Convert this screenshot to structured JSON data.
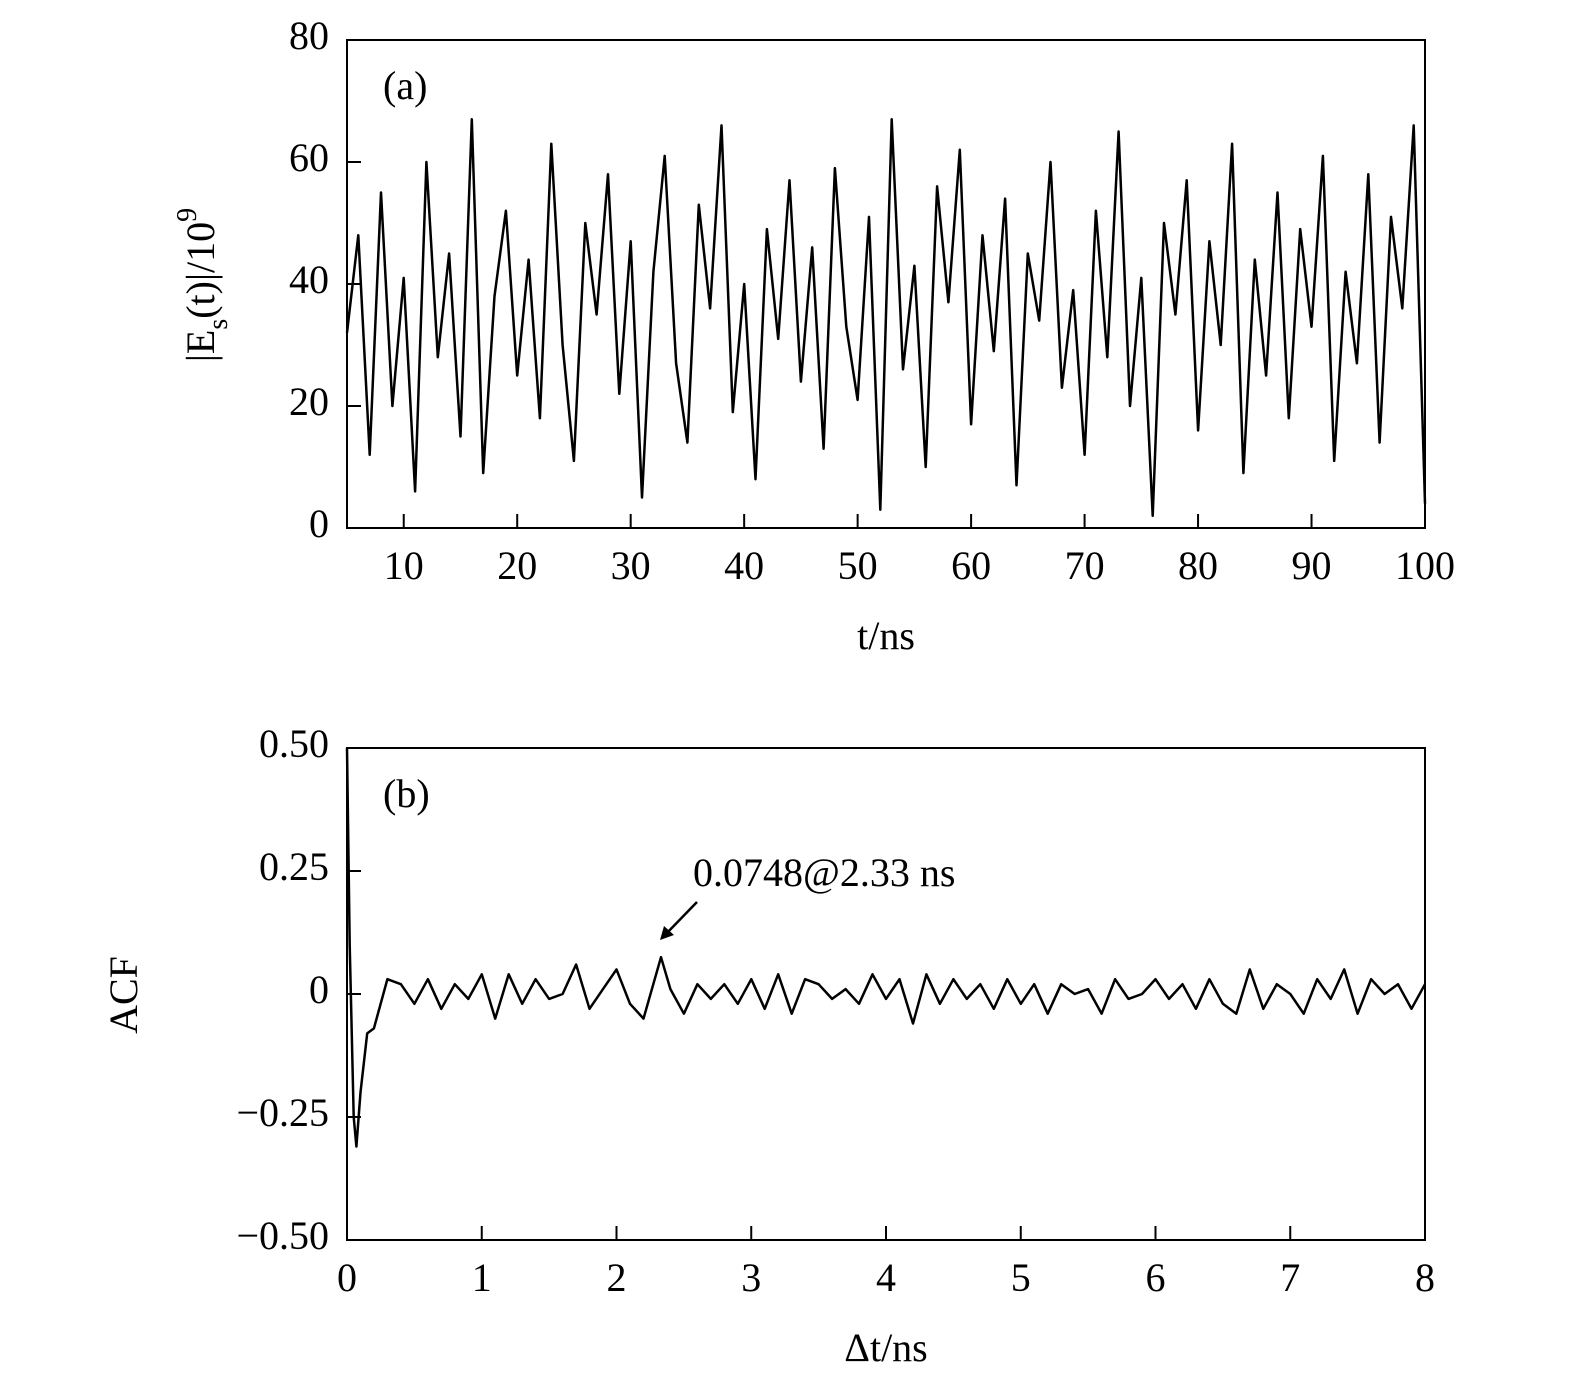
{
  "chart_data": [
    {
      "type": "line",
      "panel_label": "(a)",
      "xlabel": "t/ns",
      "ylabel": [
        "|E",
        "s",
        "(t)|/10",
        "9"
      ],
      "xlim": [
        5,
        100
      ],
      "xticks": [
        10,
        20,
        30,
        40,
        50,
        60,
        70,
        80,
        90,
        100
      ],
      "ylim": [
        0,
        80
      ],
      "yticks": [
        0,
        20,
        40,
        60,
        80
      ],
      "series": [
        {
          "color": "#000000",
          "x": [
            5,
            6,
            7,
            8,
            9,
            10,
            11,
            12,
            13,
            14,
            15,
            16,
            17,
            18,
            19,
            20,
            21,
            22,
            23,
            24,
            25,
            26,
            27,
            28,
            29,
            30,
            31,
            32,
            33,
            34,
            35,
            36,
            37,
            38,
            39,
            40,
            41,
            42,
            43,
            44,
            45,
            46,
            47,
            48,
            49,
            50,
            51,
            52,
            53,
            54,
            55,
            56,
            57,
            58,
            59,
            60,
            61,
            62,
            63,
            64,
            65,
            66,
            67,
            68,
            69,
            70,
            71,
            72,
            73,
            74,
            75,
            76,
            77,
            78,
            79,
            80,
            81,
            82,
            83,
            84,
            85,
            86,
            87,
            88,
            89,
            90,
            91,
            92,
            93,
            94,
            95,
            96,
            97,
            98,
            99,
            100
          ],
          "values": [
            32,
            48,
            12,
            55,
            20,
            41,
            6,
            60,
            28,
            45,
            15,
            67,
            9,
            38,
            52,
            25,
            44,
            18,
            63,
            30,
            11,
            50,
            35,
            58,
            22,
            47,
            5,
            42,
            61,
            27,
            14,
            53,
            36,
            66,
            19,
            40,
            8,
            49,
            31,
            57,
            24,
            46,
            13,
            59,
            33,
            21,
            51,
            3,
            67,
            26,
            43,
            10,
            56,
            37,
            62,
            17,
            48,
            29,
            54,
            7,
            45,
            34,
            60,
            23,
            39,
            12,
            52,
            28,
            65,
            20,
            41,
            2,
            50,
            35,
            57,
            16,
            47,
            30,
            63,
            9,
            44,
            25,
            55,
            18,
            49,
            33,
            61,
            11,
            42,
            27,
            58,
            14,
            51,
            36,
            66,
            4
          ]
        }
      ]
    },
    {
      "type": "line",
      "panel_label": "(b)",
      "xlabel": "Δt/ns",
      "ylabel": [
        "ACF"
      ],
      "annotation": "0.0748@2.33 ns",
      "xlim": [
        0,
        8
      ],
      "xticks": [
        0,
        1,
        2,
        3,
        4,
        5,
        6,
        7,
        8
      ],
      "ylim": [
        -0.5,
        0.5
      ],
      "yticks": [
        {
          "value": -0.5,
          "label": "−0.50"
        },
        {
          "value": -0.25,
          "label": "−0.25"
        },
        0,
        0.25,
        {
          "value": 0.5,
          "label": "0.50"
        }
      ],
      "series": [
        {
          "color": "#000000",
          "x": [
            0,
            0.02,
            0.05,
            0.07,
            0.1,
            0.15,
            0.2,
            0.3,
            0.4,
            0.5,
            0.6,
            0.7,
            0.8,
            0.9,
            1.0,
            1.1,
            1.2,
            1.3,
            1.4,
            1.5,
            1.6,
            1.7,
            1.8,
            1.9,
            2.0,
            2.1,
            2.2,
            2.33,
            2.4,
            2.5,
            2.6,
            2.7,
            2.8,
            2.9,
            3.0,
            3.1,
            3.2,
            3.3,
            3.4,
            3.5,
            3.6,
            3.7,
            3.8,
            3.9,
            4.0,
            4.1,
            4.2,
            4.3,
            4.4,
            4.5,
            4.6,
            4.7,
            4.8,
            4.9,
            5.0,
            5.1,
            5.2,
            5.3,
            5.4,
            5.5,
            5.6,
            5.7,
            5.8,
            5.9,
            6.0,
            6.1,
            6.2,
            6.3,
            6.4,
            6.5,
            6.6,
            6.7,
            6.8,
            6.9,
            7.0,
            7.1,
            7.2,
            7.3,
            7.4,
            7.5,
            7.6,
            7.7,
            7.8,
            7.9,
            8.0
          ],
          "values": [
            0.5,
            0.1,
            -0.25,
            -0.31,
            -0.2,
            -0.08,
            -0.07,
            0.03,
            0.02,
            -0.02,
            0.03,
            -0.03,
            0.02,
            -0.01,
            0.04,
            -0.05,
            0.04,
            -0.02,
            0.03,
            -0.01,
            0.0,
            0.06,
            -0.03,
            0.01,
            0.05,
            -0.02,
            -0.05,
            0.0748,
            0.01,
            -0.04,
            0.02,
            -0.01,
            0.02,
            -0.02,
            0.03,
            -0.03,
            0.04,
            -0.04,
            0.03,
            0.02,
            -0.01,
            0.01,
            -0.02,
            0.04,
            -0.01,
            0.03,
            -0.06,
            0.04,
            -0.02,
            0.03,
            -0.01,
            0.02,
            -0.03,
            0.03,
            -0.02,
            0.02,
            -0.04,
            0.02,
            0.0,
            0.01,
            -0.04,
            0.03,
            -0.01,
            0.0,
            0.03,
            -0.01,
            0.02,
            -0.03,
            0.03,
            -0.02,
            -0.04,
            0.05,
            -0.03,
            0.02,
            0.0,
            -0.04,
            0.03,
            -0.01,
            0.05,
            -0.04,
            0.03,
            0.0,
            0.02,
            -0.03,
            0.02
          ]
        }
      ]
    }
  ]
}
